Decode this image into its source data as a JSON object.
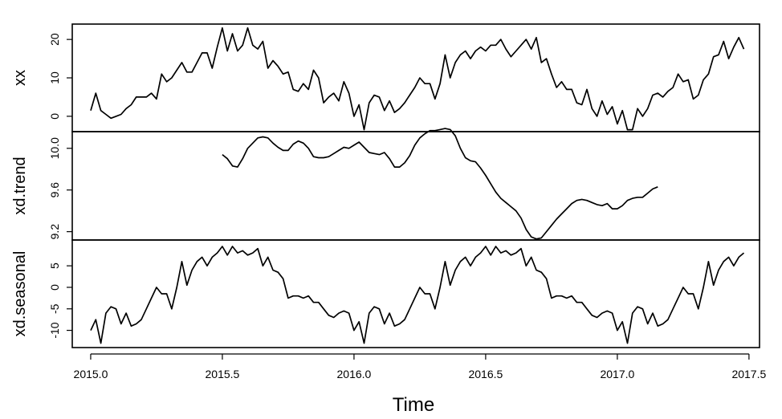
{
  "chart_data": {
    "type": "line",
    "xlabel": "Time",
    "xlim": [
      2014.93,
      2017.54
    ],
    "x_ticks": [
      "2015.0",
      "2015.5",
      "2016.0",
      "2016.5",
      "2017.0",
      "2017.5"
    ],
    "x_tick_values": [
      2015.0,
      2015.5,
      2016.0,
      2016.5,
      2017.0,
      2017.5
    ],
    "colors": {
      "line": "#000000",
      "frame": "#000000",
      "background": "#ffffff"
    },
    "panels": [
      {
        "ylabel": "xx",
        "ylim": [
          -4,
          24
        ],
        "y_ticks": [
          "0",
          "10",
          "20"
        ],
        "y_tick_values": [
          0,
          10,
          20
        ],
        "series": {
          "x_start": 2015.0,
          "x_step": 0.01923,
          "values": [
            1.5,
            6,
            1.5,
            0.5,
            -0.5,
            0,
            0.5,
            2,
            3,
            5,
            5,
            5,
            6,
            4.5,
            11,
            9,
            10,
            12,
            14,
            11.5,
            11.5,
            14,
            16.5,
            16.5,
            12.5,
            18,
            23,
            17,
            21.5,
            17,
            18.5,
            23,
            18.5,
            17.5,
            19.5,
            12.5,
            14.5,
            13,
            11,
            11.5,
            7,
            6.5,
            8.5,
            7,
            12,
            10,
            3.5,
            5,
            6,
            4,
            9,
            6,
            0,
            3,
            -3.5,
            3.5,
            5.5,
            5,
            1.5,
            4,
            1,
            2,
            3.5,
            5.5,
            7.5,
            10,
            8.5,
            8.5,
            4.5,
            8.5,
            16,
            10,
            14,
            16,
            17,
            15,
            17,
            18,
            17,
            18.5,
            18.5,
            20,
            17.5,
            15.5,
            17,
            18.5,
            20,
            17.5,
            20.5,
            14,
            15,
            11,
            7.5,
            9,
            7,
            7,
            3.5,
            3,
            7,
            2,
            0,
            4,
            0.5,
            2.5,
            -2,
            1.5,
            -3.5,
            -3.5,
            2,
            0,
            2,
            5.5,
            6,
            5,
            6.5,
            7.5,
            11,
            9,
            9.5,
            4.5,
            5.5,
            9.5,
            11,
            15.5,
            16,
            19.5,
            15,
            18,
            20.5,
            17.5
          ]
        }
      },
      {
        "ylabel": "xd.trend",
        "ylim": [
          9.12,
          10.16
        ],
        "y_ticks": [
          "9.2",
          "9.6",
          "10.0"
        ],
        "y_tick_values": [
          9.2,
          9.6,
          10.0
        ],
        "series": {
          "x_start": 2015.5,
          "x_step": 0.01923,
          "values": [
            9.94,
            9.9,
            9.83,
            9.82,
            9.9,
            10.0,
            10.05,
            10.1,
            10.11,
            10.1,
            10.05,
            10.01,
            9.98,
            9.98,
            10.04,
            10.07,
            10.05,
            10.0,
            9.92,
            9.91,
            9.91,
            9.92,
            9.95,
            9.98,
            10.01,
            10.0,
            10.03,
            10.06,
            10.01,
            9.96,
            9.95,
            9.94,
            9.96,
            9.9,
            9.82,
            9.82,
            9.86,
            9.93,
            10.03,
            10.1,
            10.14,
            10.17,
            10.17,
            10.18,
            10.19,
            10.18,
            10.12,
            10.0,
            9.91,
            9.88,
            9.87,
            9.81,
            9.74,
            9.66,
            9.58,
            9.52,
            9.48,
            9.44,
            9.4,
            9.33,
            9.22,
            9.15,
            9.13,
            9.14,
            9.2,
            9.26,
            9.32,
            9.37,
            9.42,
            9.47,
            9.5,
            9.51,
            9.5,
            9.48,
            9.46,
            9.45,
            9.47,
            9.42,
            9.42,
            9.45,
            9.5,
            9.52,
            9.53,
            9.53,
            9.57,
            9.61,
            9.63
          ]
        }
      },
      {
        "ylabel": "xd.seasonal",
        "ylim": [
          -14,
          11
        ],
        "y_ticks": [
          "-10",
          "-5",
          "0",
          "5"
        ],
        "y_tick_values": [
          -10,
          -5,
          0,
          5
        ],
        "series": {
          "x_start": 2015.0,
          "x_step": 0.01923,
          "values": [
            -10,
            -7.5,
            -13,
            -6,
            -4.5,
            -5,
            -8.5,
            -6,
            -9,
            -8.5,
            -7.5,
            -5,
            -2.5,
            0,
            -1.5,
            -1.5,
            -5,
            0,
            6,
            0.5,
            4,
            6,
            7,
            5,
            7,
            8,
            9.5,
            7.5,
            9.5,
            8,
            8.5,
            7.5,
            8,
            9,
            5,
            7,
            4,
            3.5,
            2,
            -2.5,
            -2,
            -2,
            -2.5,
            -2,
            -3.5,
            -3.5,
            -5,
            -6.5,
            -7,
            -6,
            -5.5,
            -6,
            -10,
            -8,
            -13,
            -6,
            -4.5,
            -5,
            -8.5,
            -6,
            -9,
            -8.5,
            -7.5,
            -5,
            -2.5,
            0,
            -1.5,
            -1.5,
            -5,
            0,
            6,
            0.5,
            4,
            6,
            7,
            5,
            7,
            8,
            9.5,
            7.5,
            9.5,
            8,
            8.5,
            7.5,
            8,
            9,
            5,
            7,
            4,
            3.5,
            2,
            -2.5,
            -2,
            -2,
            -2.5,
            -2,
            -3.5,
            -3.5,
            -5,
            -6.5,
            -7,
            -6,
            -5.5,
            -6,
            -10,
            -8,
            -13,
            -6,
            -4.5,
            -5,
            -8.5,
            -6,
            -9,
            -8.5,
            -7.5,
            -5,
            -2.5,
            0,
            -1.5,
            -1.5,
            -5,
            0,
            6,
            0.5,
            4,
            6,
            7,
            5,
            7,
            8
          ]
        }
      }
    ]
  }
}
